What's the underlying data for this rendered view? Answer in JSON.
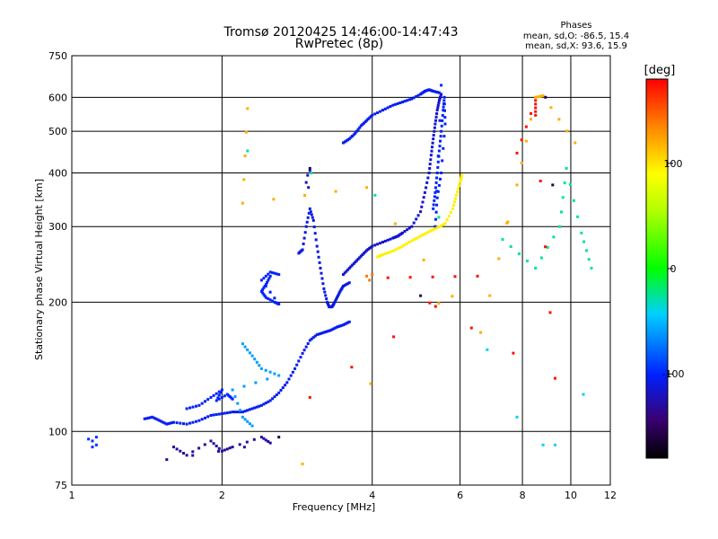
{
  "chart_data": {
    "type": "scatter",
    "title": "Tromsø 20120425 14:46:00-14:47:43",
    "subtitle": "RwPretec (8p)",
    "xlabel": "Frequency [MHz]",
    "ylabel": "Stationary phase Virtual Height [km]",
    "x_scale": "log",
    "y_scale": "log",
    "xlim": [
      1,
      12
    ],
    "ylim": [
      75,
      750
    ],
    "x_ticks": [
      1,
      2,
      4,
      6,
      8,
      10,
      12
    ],
    "x_tick_labels": [
      "1",
      "2",
      "4",
      "6",
      "8",
      "10",
      "12"
    ],
    "y_ticks": [
      75,
      100,
      200,
      300,
      400,
      500,
      600,
      750
    ],
    "y_tick_labels": [
      "75",
      "100",
      "200",
      "300",
      "400",
      "500",
      "600",
      "750"
    ],
    "grid": true,
    "phase_box": {
      "heading": "Phases",
      "line_o": "mean, sd,O: -86.5, 15.4",
      "line_x": "mean, sd,X: 93.6, 15.9"
    },
    "colorbar": {
      "label": "[deg]",
      "range": [
        -180,
        180
      ],
      "ticks": [
        100,
        0,
        -100
      ],
      "tick_labels": [
        "100",
        "0",
        "-100"
      ]
    },
    "traces": [
      {
        "phase": -95,
        "points": [
          [
            1.08,
            96
          ],
          [
            1.1,
            95
          ],
          [
            1.12,
            93
          ],
          [
            1.1,
            92
          ],
          [
            1.12,
            97
          ]
        ]
      },
      {
        "phase": -105,
        "points": [
          [
            1.4,
            107
          ],
          [
            1.45,
            108
          ],
          [
            1.5,
            106
          ],
          [
            1.55,
            104
          ],
          [
            1.6,
            105
          ],
          [
            1.7,
            104
          ],
          [
            1.8,
            106
          ],
          [
            1.9,
            109
          ],
          [
            2.0,
            110
          ],
          [
            2.1,
            111
          ],
          [
            2.2,
            111
          ],
          [
            2.3,
            113
          ],
          [
            2.4,
            115
          ],
          [
            2.5,
            118
          ],
          [
            2.6,
            123
          ],
          [
            2.7,
            130
          ],
          [
            2.8,
            140
          ],
          [
            2.9,
            152
          ],
          [
            3.0,
            163
          ],
          [
            3.1,
            168
          ],
          [
            3.2,
            170
          ],
          [
            3.3,
            172
          ],
          [
            3.4,
            175
          ],
          [
            3.5,
            177
          ],
          [
            3.6,
            180
          ]
        ]
      },
      {
        "phase": -100,
        "points": [
          [
            1.7,
            113
          ],
          [
            1.8,
            115
          ],
          [
            1.9,
            120
          ],
          [
            2.0,
            125
          ],
          [
            1.95,
            118
          ],
          [
            2.05,
            122
          ],
          [
            2.1,
            119
          ]
        ]
      },
      {
        "phase": -100,
        "points": [
          [
            2.5,
            230
          ],
          [
            2.45,
            220
          ],
          [
            2.4,
            212
          ],
          [
            2.45,
            205
          ],
          [
            2.55,
            200
          ],
          [
            2.6,
            198
          ],
          [
            2.4,
            225
          ],
          [
            2.5,
            235
          ],
          [
            2.6,
            232
          ]
        ]
      },
      {
        "phase": -110,
        "points": [
          [
            2.85,
            260
          ],
          [
            2.9,
            265
          ],
          [
            2.95,
            300
          ],
          [
            3.0,
            330
          ],
          [
            3.05,
            310
          ],
          [
            3.1,
            270
          ],
          [
            3.15,
            240
          ],
          [
            3.2,
            215
          ],
          [
            3.25,
            200
          ],
          [
            3.28,
            195
          ],
          [
            3.32,
            195
          ],
          [
            3.35,
            198
          ],
          [
            3.4,
            205
          ],
          [
            3.45,
            212
          ],
          [
            3.5,
            218
          ],
          [
            3.6,
            222
          ]
        ]
      },
      {
        "phase": -120,
        "points": [
          [
            2.95,
            380
          ],
          [
            2.97,
            395
          ],
          [
            3.0,
            405
          ],
          [
            2.98,
            370
          ]
        ]
      },
      {
        "phase": -115,
        "points": [
          [
            3.5,
            232
          ],
          [
            3.6,
            240
          ],
          [
            3.7,
            248
          ],
          [
            3.8,
            256
          ],
          [
            3.9,
            264
          ],
          [
            4.0,
            270
          ],
          [
            4.2,
            276
          ],
          [
            4.4,
            282
          ],
          [
            4.5,
            285
          ],
          [
            4.6,
            290
          ],
          [
            4.8,
            300
          ],
          [
            5.0,
            325
          ],
          [
            5.1,
            360
          ],
          [
            5.2,
            400
          ],
          [
            5.25,
            440
          ],
          [
            5.3,
            480
          ],
          [
            5.35,
            520
          ],
          [
            5.4,
            560
          ],
          [
            5.45,
            590
          ],
          [
            5.5,
            610
          ]
        ]
      },
      {
        "phase": -105,
        "points": [
          [
            3.5,
            470
          ],
          [
            3.6,
            480
          ],
          [
            3.7,
            495
          ],
          [
            3.8,
            515
          ],
          [
            3.9,
            530
          ],
          [
            4.0,
            545
          ],
          [
            4.2,
            560
          ],
          [
            4.4,
            575
          ],
          [
            4.6,
            585
          ],
          [
            4.8,
            595
          ],
          [
            5.0,
            610
          ],
          [
            5.1,
            620
          ],
          [
            5.2,
            625
          ],
          [
            5.3,
            620
          ],
          [
            5.45,
            615
          ]
        ]
      },
      {
        "phase": -100,
        "points": [
          [
            5.3,
            330
          ],
          [
            5.35,
            360
          ],
          [
            5.4,
            400
          ],
          [
            5.45,
            450
          ],
          [
            5.5,
            500
          ],
          [
            5.55,
            560
          ],
          [
            5.58,
            600
          ],
          [
            5.6,
            520
          ],
          [
            5.5,
            400
          ],
          [
            5.4,
            350
          ],
          [
            5.35,
            300
          ],
          [
            5.5,
            640
          ]
        ]
      },
      {
        "phase": 95,
        "points": [
          [
            4.1,
            255
          ],
          [
            4.2,
            258
          ],
          [
            4.4,
            263
          ],
          [
            4.6,
            270
          ],
          [
            4.8,
            278
          ],
          [
            5.0,
            285
          ],
          [
            5.2,
            292
          ],
          [
            5.4,
            298
          ],
          [
            5.6,
            305
          ],
          [
            5.8,
            330
          ],
          [
            5.9,
            355
          ],
          [
            6.0,
            380
          ],
          [
            6.05,
            395
          ]
        ]
      },
      {
        "phase": 140,
        "points": [
          [
            3.9,
            230
          ],
          [
            3.95,
            225
          ],
          [
            4.0,
            232
          ]
        ]
      },
      {
        "phase": -60,
        "points": [
          [
            2.2,
            160
          ],
          [
            2.3,
            150
          ],
          [
            2.4,
            140
          ],
          [
            2.6,
            135
          ],
          [
            2.1,
            125
          ],
          [
            2.2,
            108
          ],
          [
            2.3,
            103
          ]
        ]
      },
      {
        "phase": -130,
        "points": [
          [
            1.6,
            92
          ],
          [
            1.7,
            88
          ],
          [
            1.9,
            95
          ],
          [
            2.0,
            90
          ],
          [
            2.1,
            92
          ],
          [
            2.4,
            97
          ],
          [
            2.5,
            94
          ],
          [
            1.55,
            86
          ]
        ]
      },
      {
        "phase": -25,
        "points": [
          [
            2.25,
            450
          ],
          [
            7.3,
            280
          ],
          [
            8.5,
            240
          ],
          [
            9.5,
            300
          ],
          [
            9.8,
            410
          ],
          [
            10.5,
            290
          ],
          [
            11.0,
            240
          ]
        ]
      },
      {
        "phase": -40,
        "points": [
          [
            7.8,
            108
          ],
          [
            8.8,
            93
          ],
          [
            9.3,
            93
          ],
          [
            10.6,
            122
          ],
          [
            6.8,
            155
          ]
        ]
      },
      {
        "phase": 120,
        "points": [
          [
            2.25,
            565
          ],
          [
            2.2,
            340
          ],
          [
            3.9,
            370
          ],
          [
            6.6,
            170
          ],
          [
            7.8,
            375
          ],
          [
            8.5,
            600
          ],
          [
            8.8,
            605
          ],
          [
            10.2,
            470
          ],
          [
            2.9,
            84
          ]
        ]
      },
      {
        "phase": 175,
        "points": [
          [
            7.8,
            445
          ],
          [
            8.5,
            590
          ],
          [
            8.5,
            545
          ],
          [
            9.3,
            133
          ],
          [
            4.3,
            228
          ],
          [
            6.5,
            230
          ],
          [
            3.0,
            120
          ]
        ]
      },
      {
        "phase": -155,
        "points": [
          [
            9.2,
            375
          ],
          [
            5.0,
            207
          ],
          [
            8.9,
            600
          ],
          [
            2.6,
            97
          ],
          [
            3.0,
            410
          ]
        ]
      }
    ]
  }
}
